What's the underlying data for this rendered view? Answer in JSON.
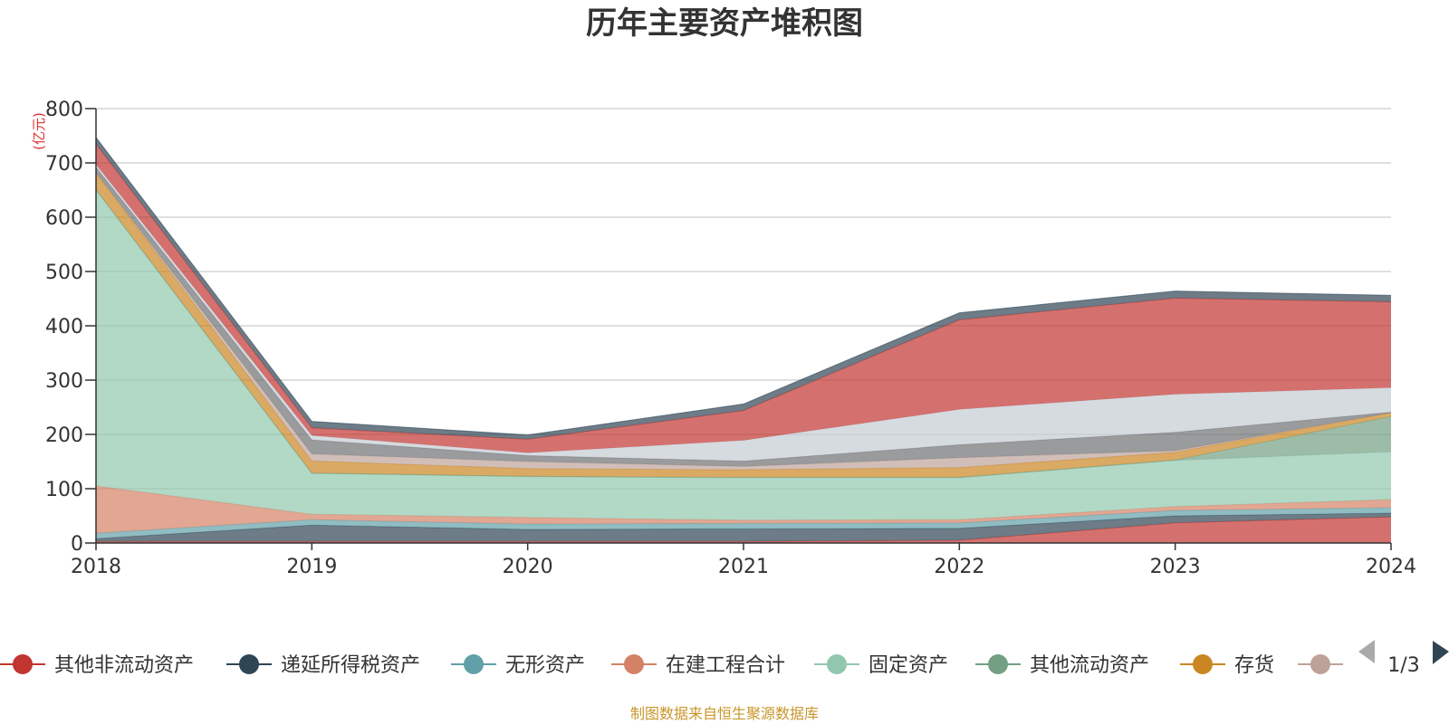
{
  "chart_data": {
    "type": "area",
    "stacked": true,
    "title": "历年主要资产堆积图",
    "unit_label": "(亿元)",
    "x": [
      "2018",
      "2019",
      "2020",
      "2021",
      "2022",
      "2023",
      "2024"
    ],
    "ylim": [
      0,
      800
    ],
    "yticks": [
      "0",
      "100",
      "200",
      "300",
      "400",
      "500",
      "600",
      "700",
      "800"
    ],
    "grid": true,
    "series": [
      {
        "name": "其他非流动资产",
        "color": "#c23531",
        "values": [
          3,
          3,
          3,
          3,
          5,
          37,
          48
        ]
      },
      {
        "name": "递延所得税资产",
        "color": "#2f4554",
        "values": [
          5,
          30,
          22,
          23,
          22,
          13,
          7
        ]
      },
      {
        "name": "无形资产",
        "color": "#61a0a8",
        "values": [
          10,
          10,
          10,
          10,
          10,
          10,
          10
        ]
      },
      {
        "name": "在建工程合计",
        "color": "#d48265",
        "values": [
          87,
          10,
          12,
          6,
          6,
          7,
          15
        ]
      },
      {
        "name": "固定资产",
        "color": "#91c7ae",
        "values": [
          545,
          75,
          75,
          78,
          77,
          85,
          88
        ]
      },
      {
        "name": "其他流动资产",
        "color": "#749f83",
        "values": [
          1,
          1,
          1,
          1,
          1,
          1,
          65
        ]
      },
      {
        "name": "存货",
        "color": "#ca8622",
        "values": [
          31,
          22,
          14,
          14,
          18,
          14,
          7
        ]
      },
      {
        "name": "",
        "color": "#bda29a",
        "values": [
          0,
          13,
          13,
          6,
          18,
          3,
          0
        ]
      },
      {
        "name": "",
        "color": "#6e7074",
        "values": [
          10,
          26,
          11,
          10,
          24,
          34,
          1
        ]
      },
      {
        "name": "",
        "color": "#c4ccd3",
        "values": [
          5,
          8,
          5,
          38,
          65,
          70,
          45
        ]
      },
      {
        "name": "",
        "color": "#c23531",
        "values": [
          38,
          14,
          25,
          55,
          165,
          177,
          158
        ]
      },
      {
        "name": "",
        "color": "#2f4554",
        "values": [
          12,
          12,
          8,
          12,
          13,
          13,
          12
        ]
      }
    ]
  },
  "legend": {
    "items": [
      "其他非流动资产",
      "递延所得税资产",
      "无形资产",
      "在建工程合计",
      "固定资产",
      "其他流动资产",
      "存货",
      ""
    ],
    "colors": [
      "#c23531",
      "#2f4554",
      "#61a0a8",
      "#d48265",
      "#91c7ae",
      "#749f83",
      "#ca8622",
      "#bda29a"
    ],
    "page": "1/3"
  },
  "source_note": "制图数据来自恒生聚源数据库"
}
